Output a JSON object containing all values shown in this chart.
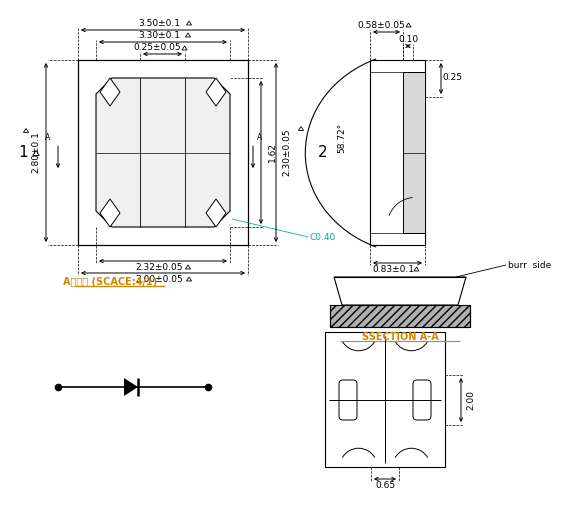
{
  "bg_color": "#ffffff",
  "line_color": "#000000",
  "dim_color": "#000000",
  "cyan_color": "#00aaaa",
  "bold_label_color": "#cc8800",
  "title_text": "A尺寸图 (SCACE:4/1)",
  "section_label": "SSECTION A-A",
  "burr_label": "burr  side",
  "label1": "1",
  "label2": "2",
  "dims": {
    "top1": "3.50±0.1",
    "top2": "3.30±0.1",
    "inner_top": "0.25±0.05",
    "left": "2.80±0.1",
    "right_inner": "1.62",
    "right_outer": "2.30±0.05",
    "bottom1": "2.32±0.05",
    "bottom2": "3.00±0.05",
    "chamfer": "C0.40",
    "side_top": "0.58±0.05",
    "side_01": "0.10",
    "side_025": "0.25",
    "side_angle": "58.72°",
    "side_bottom": "0.83±0.1",
    "bot_dim": "0.65",
    "right_dim": "2.00"
  }
}
